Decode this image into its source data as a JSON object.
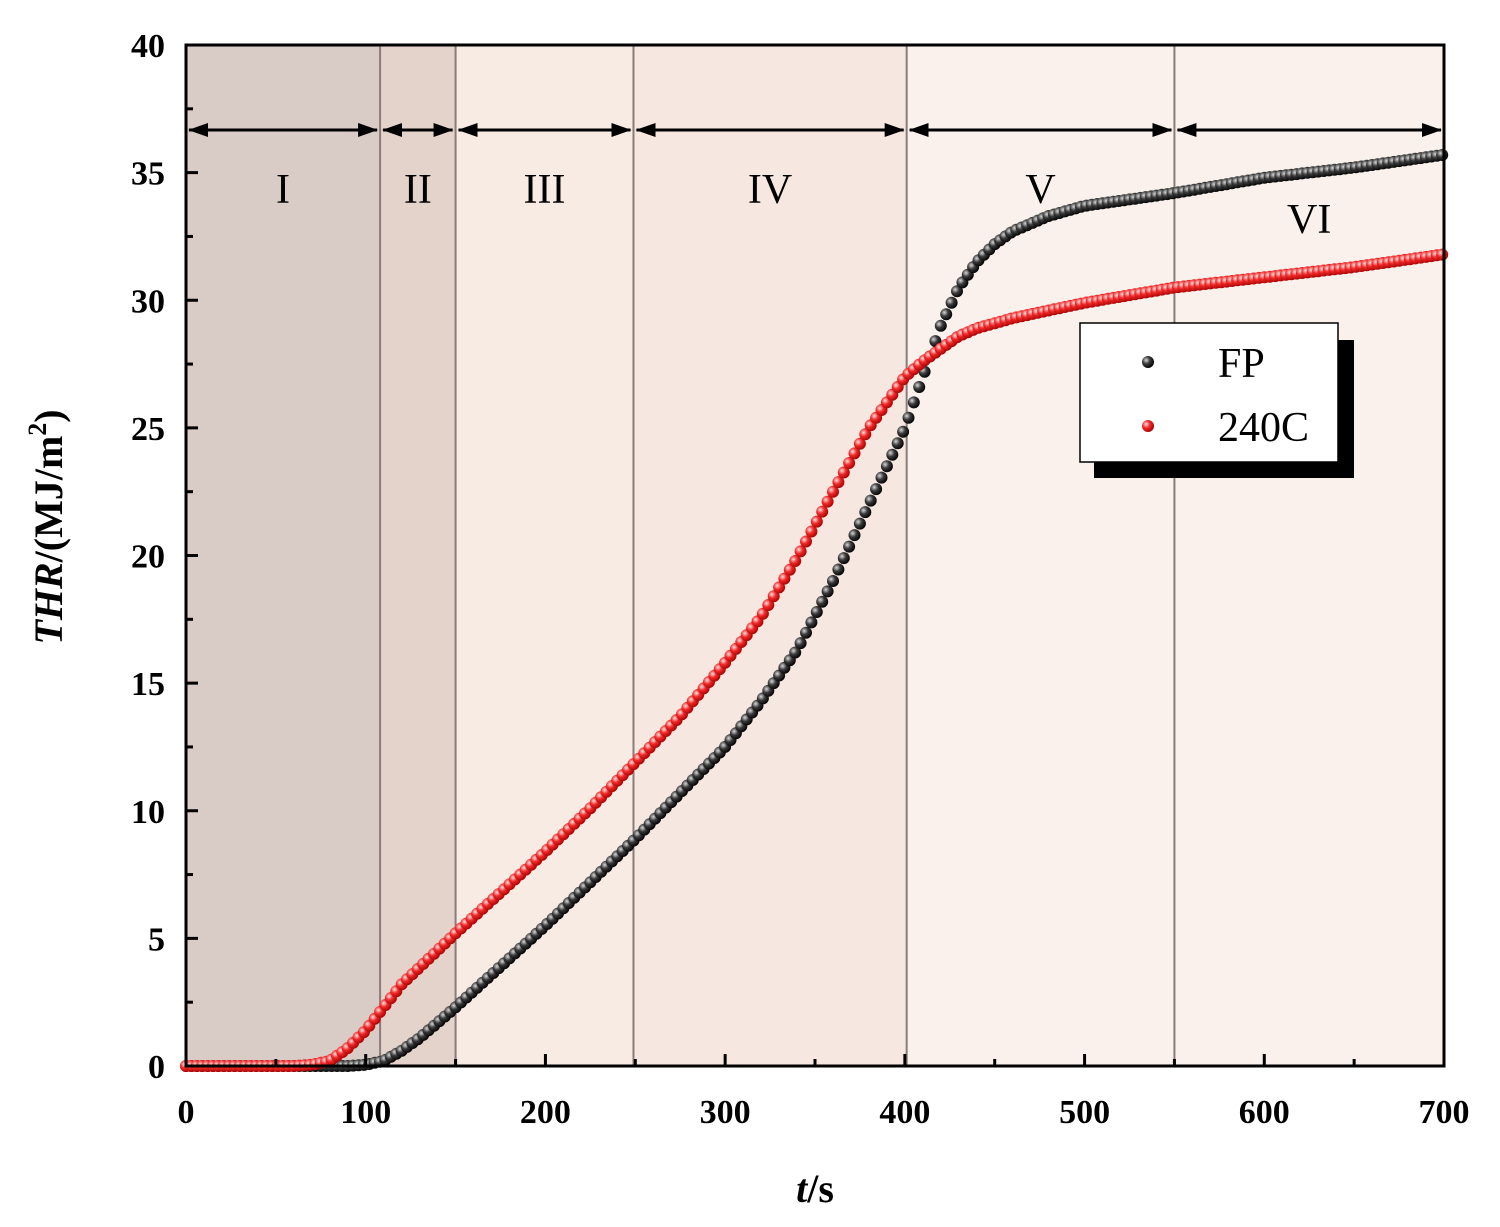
{
  "chart_data": {
    "type": "scatter",
    "title": "",
    "xlabel_italic": "t",
    "xlabel_rest": "/s",
    "ylabel_italic": "THR",
    "ylabel_rest": "/(MJ/m",
    "ylabel_sup": "2",
    "ylabel_close": ")",
    "xlim": [
      0,
      700
    ],
    "ylim": [
      0,
      40
    ],
    "xticks": [
      0,
      100,
      200,
      300,
      400,
      500,
      600,
      700
    ],
    "yticks": [
      0,
      5,
      10,
      15,
      20,
      25,
      30,
      35,
      40
    ],
    "grid": false,
    "legend_position": "upper-right",
    "regions": [
      {
        "label": "I",
        "from": 0,
        "to": 108,
        "color": "#d9cbc6"
      },
      {
        "label": "II",
        "from": 108,
        "to": 150,
        "color": "#e3d3cb"
      },
      {
        "label": "III",
        "from": 150,
        "to": 249,
        "color": "#f7ebe4"
      },
      {
        "label": "IV",
        "from": 249,
        "to": 401,
        "color": "#f6e8e0"
      },
      {
        "label": "V",
        "from": 401,
        "to": 550,
        "color": "#faf1ec"
      },
      {
        "label": "VI",
        "from": 550,
        "to": 700,
        "color": "#faf1ec"
      }
    ],
    "series": [
      {
        "name": "FP",
        "color": "#111111",
        "x": [
          0,
          50,
          90,
          100,
          110,
          120,
          130,
          150,
          175,
          200,
          225,
          250,
          275,
          300,
          320,
          340,
          360,
          380,
          400,
          410,
          420,
          430,
          440,
          450,
          460,
          480,
          500,
          530,
          550,
          600,
          650,
          700
        ],
        "y": [
          0,
          0,
          0,
          0.05,
          0.2,
          0.6,
          1.1,
          2.3,
          3.9,
          5.5,
          7.2,
          8.9,
          10.7,
          12.5,
          14.3,
          16.3,
          19.0,
          22.0,
          25.0,
          27.0,
          29.0,
          30.5,
          31.5,
          32.2,
          32.7,
          33.3,
          33.7,
          34.0,
          34.2,
          34.8,
          35.2,
          35.7
        ]
      },
      {
        "name": "240C",
        "color": "#e21c1c",
        "x": [
          0,
          60,
          70,
          80,
          90,
          100,
          110,
          120,
          135,
          150,
          175,
          200,
          225,
          250,
          275,
          300,
          320,
          340,
          360,
          380,
          400,
          410,
          420,
          430,
          440,
          460,
          500,
          550,
          600,
          650,
          700
        ],
        "y": [
          0,
          0,
          0.05,
          0.2,
          0.7,
          1.4,
          2.3,
          3.2,
          4.2,
          5.2,
          6.8,
          8.4,
          10.1,
          11.9,
          13.7,
          15.8,
          17.6,
          19.9,
          22.5,
          25.0,
          27.0,
          27.6,
          28.1,
          28.6,
          28.9,
          29.3,
          29.9,
          30.5,
          30.9,
          31.3,
          31.8
        ]
      }
    ]
  }
}
